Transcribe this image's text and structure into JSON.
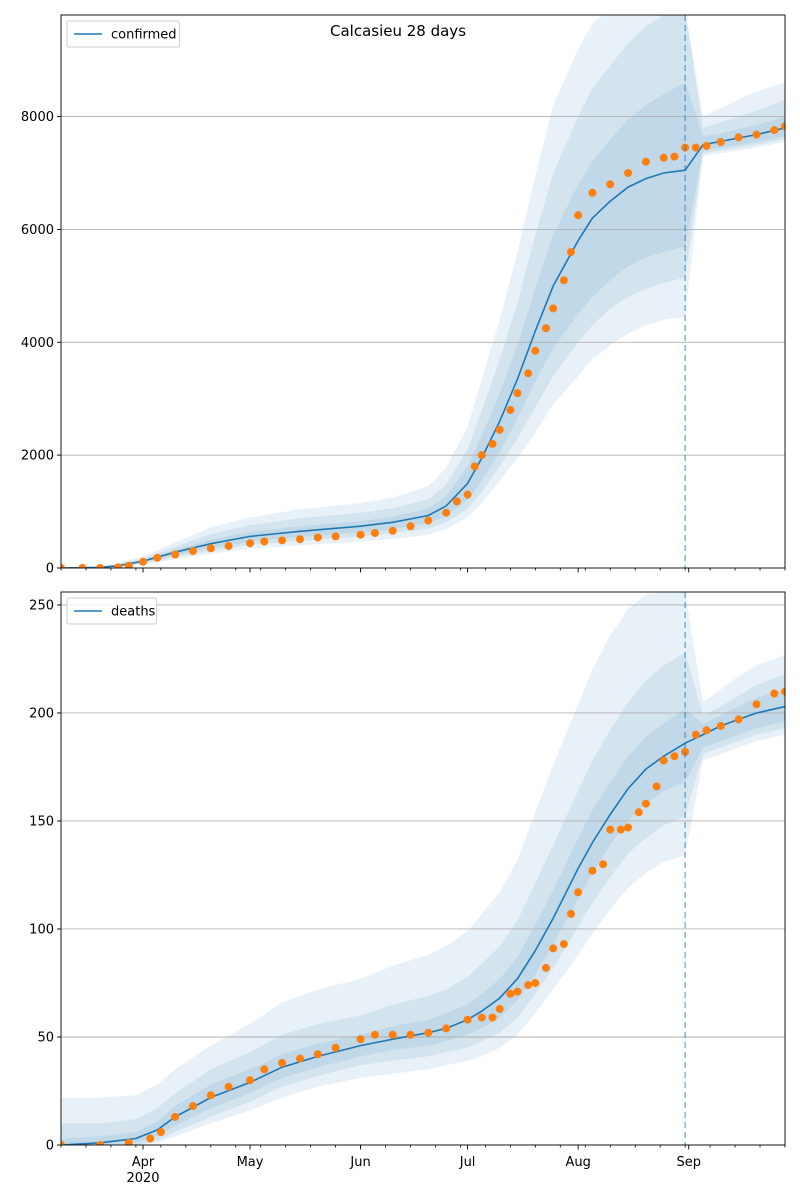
{
  "chart_data": [
    {
      "type": "line",
      "title": "Calcasieu 28 days",
      "legend": {
        "placement": "top-left",
        "entries": [
          "confirmed"
        ]
      },
      "grid": "horizontal",
      "xlim": [
        "2020-03-09",
        "2020-09-28"
      ],
      "ylim": [
        0,
        9800
      ],
      "yticks": [
        0,
        2000,
        4000,
        6000,
        8000
      ],
      "xticks": [
        {
          "date": "2020-04-01",
          "label": "Apr"
        },
        {
          "date": "2020-05-01",
          "label": "May"
        },
        {
          "date": "2020-06-01",
          "label": "Jun"
        },
        {
          "date": "2020-07-01",
          "label": "Jul"
        },
        {
          "date": "2020-08-01",
          "label": "Aug"
        },
        {
          "date": "2020-09-01",
          "label": "Sep"
        }
      ],
      "show_xtick_labels": false,
      "vline_date": "2020-08-31",
      "series": [
        {
          "name": "confirmed",
          "color": "#1f77b4",
          "kind": "model",
          "x": [
            "2020-03-09",
            "2020-03-20",
            "2020-03-25",
            "2020-04-01",
            "2020-04-10",
            "2020-04-20",
            "2020-05-01",
            "2020-05-15",
            "2020-06-01",
            "2020-06-10",
            "2020-06-20",
            "2020-06-25",
            "2020-07-01",
            "2020-07-05",
            "2020-07-10",
            "2020-07-15",
            "2020-07-20",
            "2020-07-25",
            "2020-08-01",
            "2020-08-05",
            "2020-08-10",
            "2020-08-15",
            "2020-08-20",
            "2020-08-25",
            "2020-08-31",
            "2020-09-05",
            "2020-09-10",
            "2020-09-15",
            "2020-09-20",
            "2020-09-28"
          ],
          "values": [
            0,
            10,
            40,
            120,
            280,
            430,
            560,
            650,
            740,
            810,
            930,
            1100,
            1500,
            1950,
            2600,
            3350,
            4200,
            5000,
            5800,
            6200,
            6500,
            6750,
            6900,
            7000,
            7050,
            7500,
            7560,
            7620,
            7680,
            7800
          ],
          "bands": [
            {
              "lower": [
                0,
                5,
                30,
                100,
                230,
                350,
                470,
                550,
                630,
                690,
                790,
                920,
                1200,
                1550,
                2050,
                2650,
                3300,
                3900,
                4500,
                4800,
                5100,
                5350,
                5500,
                5600,
                5700,
                7400,
                7450,
                7500,
                7550,
                7650
              ],
              "upper": [
                0,
                15,
                55,
                140,
                320,
                500,
                640,
                740,
                830,
                910,
                1050,
                1270,
                1800,
                2350,
                3100,
                3950,
                4950,
                5900,
                6800,
                7200,
                7600,
                7950,
                8200,
                8400,
                8600,
                7650,
                7700,
                7780,
                7850,
                8000
              ]
            },
            {
              "lower": [
                0,
                3,
                20,
                80,
                200,
                300,
                410,
                480,
                560,
                620,
                700,
                810,
                1050,
                1350,
                1800,
                2300,
                2850,
                3400,
                4000,
                4300,
                4600,
                4800,
                4950,
                5050,
                5150,
                7350,
                7400,
                7450,
                7500,
                7600
              ],
              "upper": [
                0,
                20,
                70,
                170,
                380,
                600,
                760,
                880,
                980,
                1060,
                1220,
                1480,
                2100,
                2800,
                3700,
                4700,
                5900,
                7000,
                8000,
                8500,
                8900,
                9300,
                9600,
                9800,
                9900,
                7800,
                7900,
                8000,
                8100,
                8300
              ]
            },
            {
              "lower": [
                0,
                2,
                12,
                60,
                160,
                250,
                340,
                400,
                470,
                520,
                590,
                690,
                900,
                1150,
                1550,
                1950,
                2400,
                2900,
                3400,
                3700,
                3950,
                4150,
                4300,
                4400,
                4450,
                7300,
                7350,
                7400,
                7450,
                7550
              ],
              "upper": [
                0,
                25,
                90,
                210,
                450,
                720,
                900,
                1040,
                1150,
                1250,
                1450,
                1780,
                2500,
                3350,
                4400,
                5600,
                6950,
                8200,
                9200,
                9650,
                9900,
                9900,
                9900,
                9900,
                9900,
                8000,
                8150,
                8300,
                8450,
                8600
              ]
            }
          ]
        },
        {
          "name": "",
          "color": "#ff7f0e",
          "kind": "observed",
          "x": [
            "2020-03-09",
            "2020-03-15",
            "2020-03-20",
            "2020-03-25",
            "2020-03-28",
            "2020-04-01",
            "2020-04-05",
            "2020-04-10",
            "2020-04-15",
            "2020-04-20",
            "2020-04-25",
            "2020-05-01",
            "2020-05-05",
            "2020-05-10",
            "2020-05-15",
            "2020-05-20",
            "2020-05-25",
            "2020-06-01",
            "2020-06-05",
            "2020-06-10",
            "2020-06-15",
            "2020-06-20",
            "2020-06-25",
            "2020-06-28",
            "2020-07-01",
            "2020-07-03",
            "2020-07-05",
            "2020-07-08",
            "2020-07-10",
            "2020-07-13",
            "2020-07-15",
            "2020-07-18",
            "2020-07-20",
            "2020-07-23",
            "2020-07-25",
            "2020-07-28",
            "2020-07-30",
            "2020-08-01",
            "2020-08-05",
            "2020-08-10",
            "2020-08-15",
            "2020-08-20",
            "2020-08-25",
            "2020-08-28",
            "2020-08-31",
            "2020-09-03",
            "2020-09-06",
            "2020-09-10",
            "2020-09-15",
            "2020-09-20",
            "2020-09-25",
            "2020-09-28"
          ],
          "values": [
            0,
            0,
            0,
            10,
            40,
            110,
            180,
            240,
            300,
            350,
            390,
            440,
            470,
            490,
            510,
            540,
            560,
            590,
            620,
            660,
            740,
            840,
            980,
            1180,
            1300,
            1800,
            2000,
            2200,
            2450,
            2800,
            3100,
            3450,
            3850,
            4250,
            4600,
            5100,
            5600,
            6250,
            6650,
            6800,
            7000,
            7200,
            7270,
            7290,
            7450,
            7450,
            7480,
            7550,
            7630,
            7680,
            7760,
            7830
          ]
        }
      ]
    },
    {
      "type": "line",
      "title": "",
      "legend": {
        "placement": "top-left",
        "entries": [
          "deaths"
        ]
      },
      "grid": "horizontal",
      "xlim": [
        "2020-03-09",
        "2020-09-28"
      ],
      "ylim": [
        0,
        256
      ],
      "yticks": [
        0,
        50,
        100,
        150,
        200,
        250
      ],
      "xticks": [
        {
          "date": "2020-04-01",
          "label": "Apr"
        },
        {
          "date": "2020-05-01",
          "label": "May"
        },
        {
          "date": "2020-06-01",
          "label": "Jun"
        },
        {
          "date": "2020-07-01",
          "label": "Jul"
        },
        {
          "date": "2020-08-01",
          "label": "Aug"
        },
        {
          "date": "2020-09-01",
          "label": "Sep"
        }
      ],
      "year_label": {
        "date": "2020-04-01",
        "label": "2020"
      },
      "show_xtick_labels": true,
      "vline_date": "2020-08-31",
      "series": [
        {
          "name": "deaths",
          "color": "#1f77b4",
          "kind": "model",
          "x": [
            "2020-03-09",
            "2020-03-20",
            "2020-03-30",
            "2020-04-05",
            "2020-04-10",
            "2020-04-20",
            "2020-05-01",
            "2020-05-10",
            "2020-05-20",
            "2020-06-01",
            "2020-06-10",
            "2020-06-20",
            "2020-06-25",
            "2020-07-01",
            "2020-07-05",
            "2020-07-10",
            "2020-07-15",
            "2020-07-20",
            "2020-07-25",
            "2020-08-01",
            "2020-08-05",
            "2020-08-10",
            "2020-08-15",
            "2020-08-20",
            "2020-08-25",
            "2020-08-31",
            "2020-09-05",
            "2020-09-10",
            "2020-09-15",
            "2020-09-20",
            "2020-09-28"
          ],
          "values": [
            0,
            1,
            3,
            7,
            13,
            22,
            29,
            36,
            41,
            46,
            49,
            52,
            54,
            58,
            62,
            68,
            77,
            90,
            105,
            128,
            140,
            153,
            165,
            174,
            180,
            186,
            190,
            194,
            197,
            200,
            203
          ],
          "bands": [
            {
              "lower": [
                0,
                0,
                1,
                4,
                9,
                17,
                24,
                31,
                36,
                41,
                44,
                46,
                48,
                51,
                54,
                59,
                67,
                79,
                93,
                114,
                126,
                139,
                150,
                158,
                164,
                168,
                184,
                187,
                190,
                193,
                196
              ],
              "upper": [
                3,
                4,
                6,
                11,
                18,
                28,
                35,
                42,
                47,
                51,
                55,
                58,
                61,
                65,
                70,
                77,
                87,
                102,
                118,
                142,
                155,
                168,
                180,
                189,
                195,
                202,
                195,
                199,
                203,
                207,
                211
              ]
            },
            {
              "lower": [
                0,
                0,
                0,
                2,
                6,
                13,
                20,
                27,
                32,
                37,
                39,
                41,
                43,
                45,
                48,
                52,
                59,
                70,
                82,
                101,
                112,
                124,
                135,
                142,
                148,
                152,
                181,
                184,
                187,
                190,
                193
              ],
              "upper": [
                10,
                10,
                12,
                17,
                24,
                35,
                43,
                51,
                56,
                60,
                65,
                69,
                72,
                78,
                84,
                92,
                104,
                121,
                139,
                164,
                178,
                192,
                205,
                215,
                222,
                228,
                199,
                203,
                208,
                213,
                218
              ]
            },
            {
              "lower": [
                0,
                0,
                0,
                1,
                4,
                10,
                16,
                22,
                27,
                31,
                33,
                35,
                37,
                39,
                41,
                45,
                51,
                61,
                72,
                88,
                98,
                109,
                119,
                126,
                131,
                134,
                178,
                181,
                184,
                187,
                190
              ],
              "upper": [
                22,
                22,
                23,
                28,
                35,
                46,
                56,
                66,
                72,
                77,
                83,
                88,
                92,
                99,
                107,
                117,
                132,
                154,
                176,
                204,
                220,
                236,
                248,
                255,
                256,
                256,
                205,
                211,
                217,
                222,
                227
              ]
            }
          ]
        },
        {
          "name": "",
          "color": "#ff7f0e",
          "kind": "observed",
          "x": [
            "2020-03-09",
            "2020-03-20",
            "2020-03-28",
            "2020-04-03",
            "2020-04-06",
            "2020-04-10",
            "2020-04-15",
            "2020-04-20",
            "2020-04-25",
            "2020-05-01",
            "2020-05-05",
            "2020-05-10",
            "2020-05-15",
            "2020-05-20",
            "2020-05-25",
            "2020-06-01",
            "2020-06-05",
            "2020-06-10",
            "2020-06-15",
            "2020-06-20",
            "2020-06-25",
            "2020-07-01",
            "2020-07-05",
            "2020-07-08",
            "2020-07-10",
            "2020-07-13",
            "2020-07-15",
            "2020-07-18",
            "2020-07-20",
            "2020-07-23",
            "2020-07-25",
            "2020-07-28",
            "2020-07-30",
            "2020-08-01",
            "2020-08-05",
            "2020-08-08",
            "2020-08-10",
            "2020-08-13",
            "2020-08-15",
            "2020-08-18",
            "2020-08-20",
            "2020-08-23",
            "2020-08-25",
            "2020-08-28",
            "2020-08-31",
            "2020-09-03",
            "2020-09-06",
            "2020-09-10",
            "2020-09-15",
            "2020-09-20",
            "2020-09-25",
            "2020-09-28"
          ],
          "values": [
            0,
            0,
            1,
            3,
            6,
            13,
            18,
            23,
            27,
            30,
            35,
            38,
            40,
            42,
            45,
            49,
            51,
            51,
            51,
            52,
            54,
            58,
            59,
            59,
            63,
            70,
            71,
            74,
            75,
            82,
            91,
            93,
            107,
            117,
            127,
            130,
            146,
            146,
            147,
            154,
            158,
            166,
            178,
            180,
            182,
            190,
            192,
            194,
            197,
            204,
            209,
            210
          ]
        }
      ]
    }
  ]
}
